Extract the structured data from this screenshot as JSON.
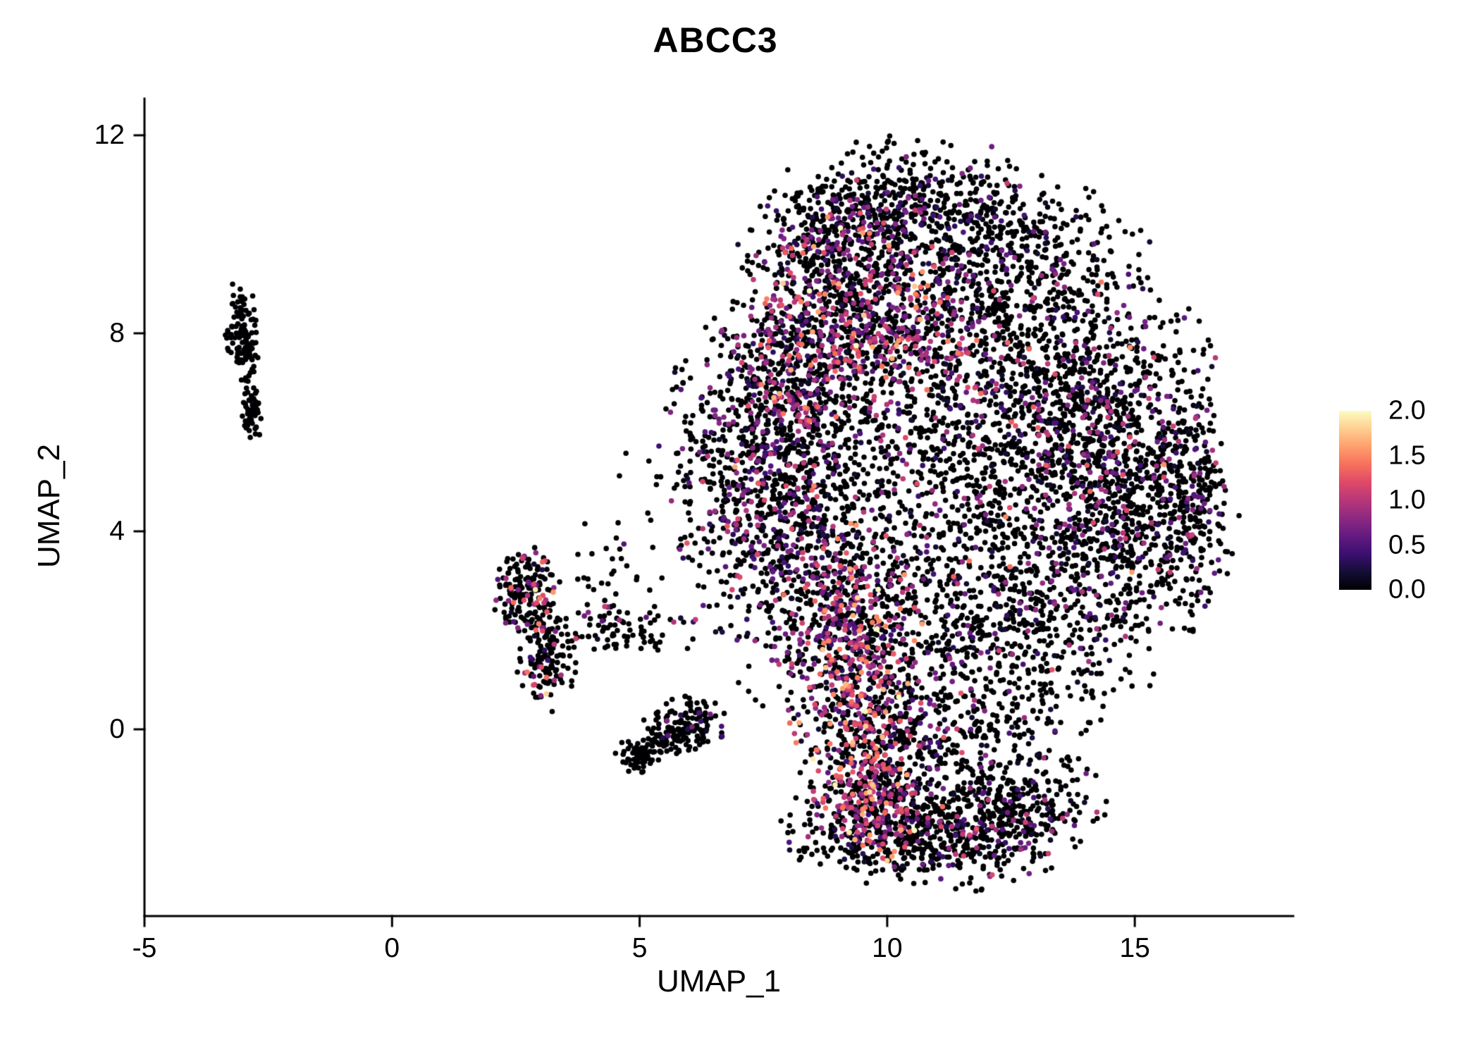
{
  "title": "ABCC3",
  "chart_data": {
    "type": "scatter",
    "title": "ABCC3",
    "xlabel": "UMAP_1",
    "ylabel": "UMAP_2",
    "xlim": [
      -5,
      18.2
    ],
    "ylim": [
      -3.77,
      12.74
    ],
    "xtick_values": [
      -5,
      0,
      5,
      10,
      15
    ],
    "xtick_labels": [
      "-5",
      "0",
      "5",
      "10",
      "15"
    ],
    "ytick_values": [
      0,
      4,
      8,
      12
    ],
    "ytick_labels": [
      "0",
      "4",
      "8",
      "12"
    ],
    "grid": false,
    "background": "#ffffff",
    "axis_color": "#000000",
    "point_radius_px": 3.8,
    "seed": 20240917,
    "legend": {
      "type": "colorbar",
      "position": "right",
      "min": 0.0,
      "max": 2.0,
      "tick_values": [
        2.0,
        1.5,
        1.0,
        0.5,
        0.0
      ],
      "tick_labels": [
        "2.0",
        "1.5",
        "1.0",
        "0.5",
        "0.0"
      ],
      "colormap": "magma",
      "stops": [
        "#000004",
        "#140e36",
        "#3b0f70",
        "#641a80",
        "#8c2981",
        "#b73779",
        "#de4968",
        "#f7705c",
        "#fe9f6d",
        "#fece91",
        "#fcfdbf"
      ]
    },
    "clusters": [
      {
        "name": "left-satellite-top",
        "n": 70,
        "cx": -3.05,
        "cy": 8.25,
        "sx": 0.16,
        "sy": 0.38,
        "p0": 1.0,
        "m": 0,
        "s": 0
      },
      {
        "name": "left-satellite-mid",
        "n": 50,
        "cx": -2.95,
        "cy": 7.55,
        "sx": 0.12,
        "sy": 0.28,
        "p0": 1.0,
        "m": 0,
        "s": 0
      },
      {
        "name": "left-satellite-bottom",
        "n": 55,
        "cx": -2.82,
        "cy": 6.4,
        "sx": 0.1,
        "sy": 0.26,
        "p0": 1.0,
        "m": 0,
        "s": 0
      },
      {
        "name": "midleft-cluster-upper",
        "n": 170,
        "cx": 2.68,
        "cy": 2.75,
        "sx": 0.3,
        "sy": 0.42,
        "p0": 0.76,
        "m": 0.9,
        "s": 0.5
      },
      {
        "name": "midleft-cluster-lower",
        "n": 140,
        "cx": 3.15,
        "cy": 1.45,
        "sx": 0.3,
        "sy": 0.5,
        "p0": 0.84,
        "m": 0.8,
        "s": 0.45
      },
      {
        "name": "midleft-tail",
        "n": 90,
        "cx": 4.6,
        "cy": 2.05,
        "sx": 0.75,
        "sy": 0.3,
        "p0": 0.93,
        "m": 0.6,
        "s": 0.3
      },
      {
        "name": "midleft-sparse",
        "n": 30,
        "cx": 4.0,
        "cy": 3.2,
        "sx": 0.7,
        "sy": 0.5,
        "p0": 0.9,
        "m": 0.5,
        "s": 0.3
      },
      {
        "name": "small-blob-left",
        "n": 70,
        "cx": 5.0,
        "cy": -0.52,
        "sx": 0.22,
        "sy": 0.18,
        "p0": 0.97,
        "m": 0.5,
        "s": 0.2
      },
      {
        "name": "small-blob-right",
        "n": 130,
        "cx": 5.95,
        "cy": 0.05,
        "sx": 0.4,
        "sy": 0.27,
        "p0": 0.93,
        "m": 0.5,
        "s": 0.3
      },
      {
        "name": "small-blob-mid",
        "n": 35,
        "cx": 5.45,
        "cy": -0.2,
        "sx": 0.18,
        "sy": 0.12,
        "p0": 0.95,
        "m": 0.5,
        "s": 0.2
      },
      {
        "name": "main-top-dome",
        "n": 450,
        "cx": 10.4,
        "cy": 10.7,
        "sx": 1.3,
        "sy": 0.58,
        "p0": 0.82,
        "m": 0.5,
        "s": 0.3
      },
      {
        "name": "main-topleft-slope",
        "n": 280,
        "cx": 8.8,
        "cy": 9.8,
        "sx": 0.8,
        "sy": 0.6,
        "p0": 0.72,
        "m": 0.6,
        "s": 0.35
      },
      {
        "name": "main-upper-center",
        "n": 850,
        "cx": 9.8,
        "cy": 8.2,
        "sx": 1.3,
        "sy": 1.0,
        "p0": 0.55,
        "m": 0.8,
        "s": 0.45
      },
      {
        "name": "main-upper-right",
        "n": 480,
        "cx": 12.4,
        "cy": 9.4,
        "sx": 1.3,
        "sy": 0.8,
        "p0": 0.86,
        "m": 0.5,
        "s": 0.3
      },
      {
        "name": "main-right-upper",
        "n": 600,
        "cx": 13.8,
        "cy": 7.0,
        "sx": 1.3,
        "sy": 1.1,
        "p0": 0.82,
        "m": 0.55,
        "s": 0.35
      },
      {
        "name": "main-right",
        "n": 900,
        "cx": 14.5,
        "cy": 4.6,
        "sx": 1.15,
        "sy": 1.5,
        "p0": 0.78,
        "m": 0.6,
        "s": 0.35
      },
      {
        "name": "main-right-edge",
        "n": 250,
        "cx": 16.0,
        "cy": 4.8,
        "sx": 0.35,
        "sy": 1.2,
        "p0": 0.8,
        "m": 0.6,
        "s": 0.3
      },
      {
        "name": "main-center",
        "n": 850,
        "cx": 11.3,
        "cy": 5.2,
        "sx": 1.6,
        "sy": 1.5,
        "p0": 0.82,
        "m": 0.6,
        "s": 0.4
      },
      {
        "name": "main-left-wing",
        "n": 650,
        "cx": 7.4,
        "cy": 5.5,
        "sx": 0.9,
        "sy": 1.4,
        "p0": 0.72,
        "m": 0.55,
        "s": 0.35
      },
      {
        "name": "main-upperleft-ridge",
        "n": 350,
        "cx": 8.2,
        "cy": 7.0,
        "sx": 0.65,
        "sy": 1.1,
        "p0": 0.6,
        "m": 0.75,
        "s": 0.4
      },
      {
        "name": "main-midleft-band",
        "n": 550,
        "cx": 8.4,
        "cy": 3.1,
        "sx": 0.95,
        "sy": 1.4,
        "p0": 0.68,
        "m": 0.65,
        "s": 0.4
      },
      {
        "name": "main-hot-band",
        "n": 650,
        "cx": 9.4,
        "cy": 0.9,
        "sx": 0.62,
        "sy": 1.5,
        "p0": 0.45,
        "m": 0.95,
        "s": 0.45
      },
      {
        "name": "main-lower-right",
        "n": 650,
        "cx": 12.2,
        "cy": 1.6,
        "sx": 1.5,
        "sy": 1.1,
        "p0": 0.86,
        "m": 0.5,
        "s": 0.35
      },
      {
        "name": "main-neck",
        "n": 220,
        "cx": 10.6,
        "cy": -0.35,
        "sx": 1.2,
        "sy": 0.45,
        "p0": 0.8,
        "m": 0.55,
        "s": 0.3
      },
      {
        "name": "bottom-lobe",
        "n": 800,
        "cx": 10.9,
        "cy": -1.95,
        "sx": 1.35,
        "sy": 0.6,
        "p0": 0.8,
        "m": 0.6,
        "s": 0.4
      },
      {
        "name": "bottom-lobe-hot",
        "n": 180,
        "cx": 9.7,
        "cy": -1.5,
        "sx": 0.45,
        "sy": 0.55,
        "p0": 0.45,
        "m": 0.95,
        "s": 0.45
      },
      {
        "name": "bottom-right-tail",
        "n": 150,
        "cx": 12.9,
        "cy": -1.4,
        "sx": 0.7,
        "sy": 0.5,
        "p0": 0.88,
        "m": 0.5,
        "s": 0.3
      },
      {
        "name": "sparse-bridge",
        "n": 25,
        "cx": 5.8,
        "cy": 4.3,
        "sx": 0.8,
        "sy": 0.8,
        "p0": 0.92,
        "m": 0.5,
        "s": 0.3
      }
    ]
  }
}
